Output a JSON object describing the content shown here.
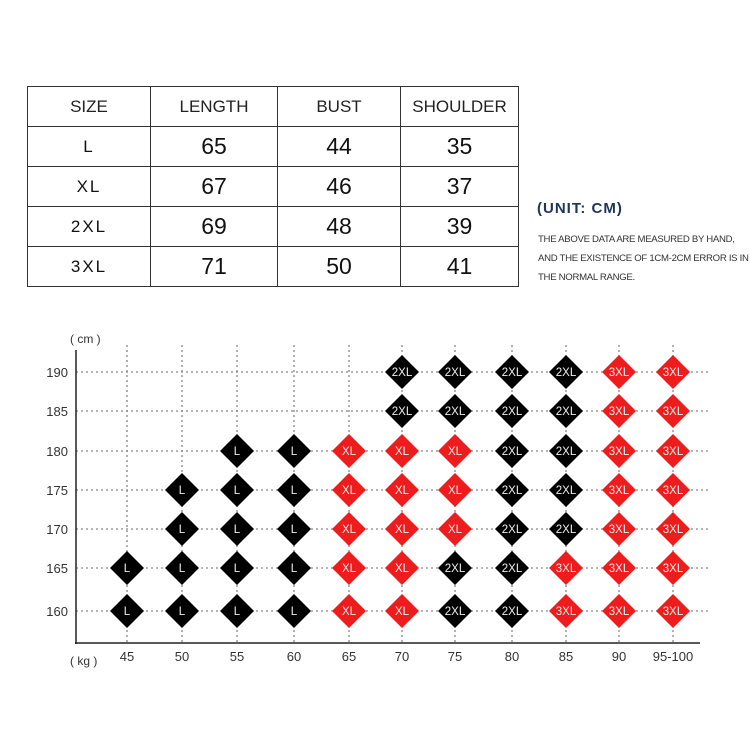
{
  "size_table": {
    "headers": [
      "SIZE",
      "LENGTH",
      "BUST",
      "SHOULDER"
    ],
    "rows": [
      [
        "L",
        "65",
        "44",
        "35"
      ],
      [
        "XL",
        "67",
        "46",
        "37"
      ],
      [
        "2XL",
        "69",
        "48",
        "39"
      ],
      [
        "3XL",
        "71",
        "50",
        "41"
      ]
    ]
  },
  "unit_label": "(UNIT: CM)",
  "note": "THE ABOVE DATA ARE MEASURED BY HAND, AND THE EXISTENCE OF 1CM-2CM ERROR IS IN THE NORMAL RANGE.",
  "size_grid": {
    "y_unit": "( cm )",
    "x_unit": "( kg )",
    "heights": [
      "190",
      "185",
      "180",
      "175",
      "170",
      "165",
      "160"
    ],
    "weights": [
      "45",
      "50",
      "55",
      "60",
      "65",
      "70",
      "75",
      "80",
      "85",
      "90",
      "95-100"
    ],
    "cells": [
      [
        "",
        "",
        "",
        "",
        "",
        "2XL",
        "2XL",
        "2XL",
        "2XL",
        "3XL",
        "3XL"
      ],
      [
        "",
        "",
        "",
        "",
        "",
        "2XL",
        "2XL",
        "2XL",
        "2XL",
        "3XL",
        "3XL"
      ],
      [
        "",
        "",
        "L",
        "L",
        "XL",
        "XL",
        "XL",
        "2XL",
        "2XL",
        "3XL",
        "3XL"
      ],
      [
        "",
        "L",
        "L",
        "L",
        "XL",
        "XL",
        "XL",
        "2XL",
        "2XL",
        "3XL",
        "3XL"
      ],
      [
        "",
        "L",
        "L",
        "L",
        "XL",
        "XL",
        "XL",
        "2XL",
        "2XL",
        "3XL",
        "3XL"
      ],
      [
        "L",
        "L",
        "L",
        "L",
        "XL",
        "XL",
        "2XL",
        "2XL",
        "3XL",
        "3XL",
        "3XL"
      ],
      [
        "L",
        "L",
        "L",
        "L",
        "XL",
        "XL",
        "2XL",
        "2XL",
        "3XL",
        "3XL",
        "3XL"
      ]
    ],
    "size_colors": {
      "L": "#000000",
      "XL": "#ee1c1c",
      "2XL": "#000000",
      "3XL": "#ee1c1c"
    }
  }
}
